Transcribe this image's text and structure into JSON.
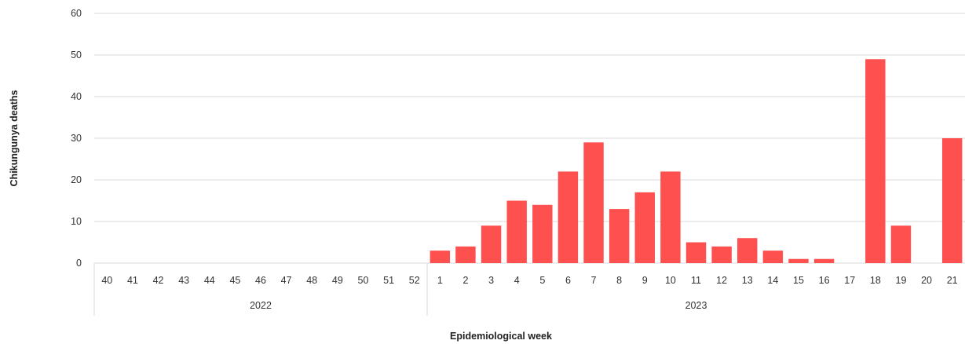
{
  "chart_data": {
    "type": "bar",
    "title": "",
    "xlabel": "Epidemiological week",
    "ylabel": "Chikungunya deaths",
    "ylim": [
      0,
      60
    ],
    "yticks": [
      0,
      10,
      20,
      30,
      40,
      50,
      60
    ],
    "grid": true,
    "legend": "none",
    "bar_color": "#FF5050",
    "gridline_color": "#D9D9D9",
    "groups": [
      {
        "label": "2022",
        "categories": [
          "40",
          "41",
          "42",
          "43",
          "44",
          "45",
          "46",
          "47",
          "48",
          "49",
          "50",
          "51",
          "52"
        ]
      },
      {
        "label": "2023",
        "categories": [
          "1",
          "2",
          "3",
          "4",
          "5",
          "6",
          "7",
          "8",
          "9",
          "10",
          "11",
          "12",
          "13",
          "14",
          "15",
          "16",
          "17",
          "18",
          "19",
          "20",
          "21"
        ]
      }
    ],
    "values": [
      0,
      0,
      0,
      0,
      0,
      0,
      0,
      0,
      0,
      0,
      0,
      0,
      0,
      3,
      4,
      9,
      15,
      14,
      22,
      29,
      13,
      17,
      22,
      5,
      4,
      6,
      3,
      1,
      1,
      0,
      49,
      9,
      0,
      30
    ]
  }
}
